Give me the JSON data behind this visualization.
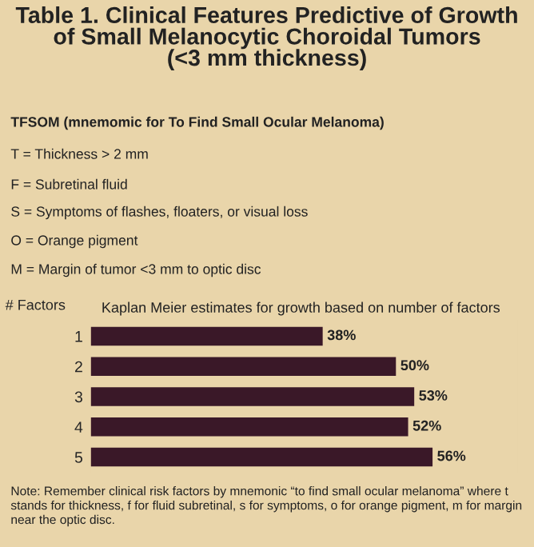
{
  "chart_data": {
    "type": "bar",
    "orientation": "horizontal",
    "title": "Table 1. Clinical Features Predictive of Growth\nof Small Melanocytic Choroidal Tumors\n(<3 mm thickness)",
    "subtitle": "Kaplan Meier estimates for growth based on number of factors",
    "ylabel": "# Factors",
    "categories": [
      "1",
      "2",
      "3",
      "4",
      "5"
    ],
    "values": [
      38,
      50,
      53,
      52,
      56
    ],
    "value_labels": [
      "38%",
      "50%",
      "53%",
      "52%",
      "56%"
    ],
    "color": "#3a1828",
    "tick_labels": "y",
    "grid": false,
    "legend": false,
    "annotations": [
      "TFSOM (mnemomic for To Find Small Ocular Melanoma)",
      "T = Thickness > 2 mm",
      "F = Subretinal fluid",
      "S = Symptoms of flashes, floaters, or visual loss",
      "O = Orange pigment",
      "M = Margin of tumor <3 mm to optic disc",
      "Note: Remember clinical risk factors by mnemonic “to find small ocular melanoma” where t stands for thickness, f for fluid subretinal, s for symptoms, o for orange pigment, m for margin near the optic disc."
    ]
  }
}
